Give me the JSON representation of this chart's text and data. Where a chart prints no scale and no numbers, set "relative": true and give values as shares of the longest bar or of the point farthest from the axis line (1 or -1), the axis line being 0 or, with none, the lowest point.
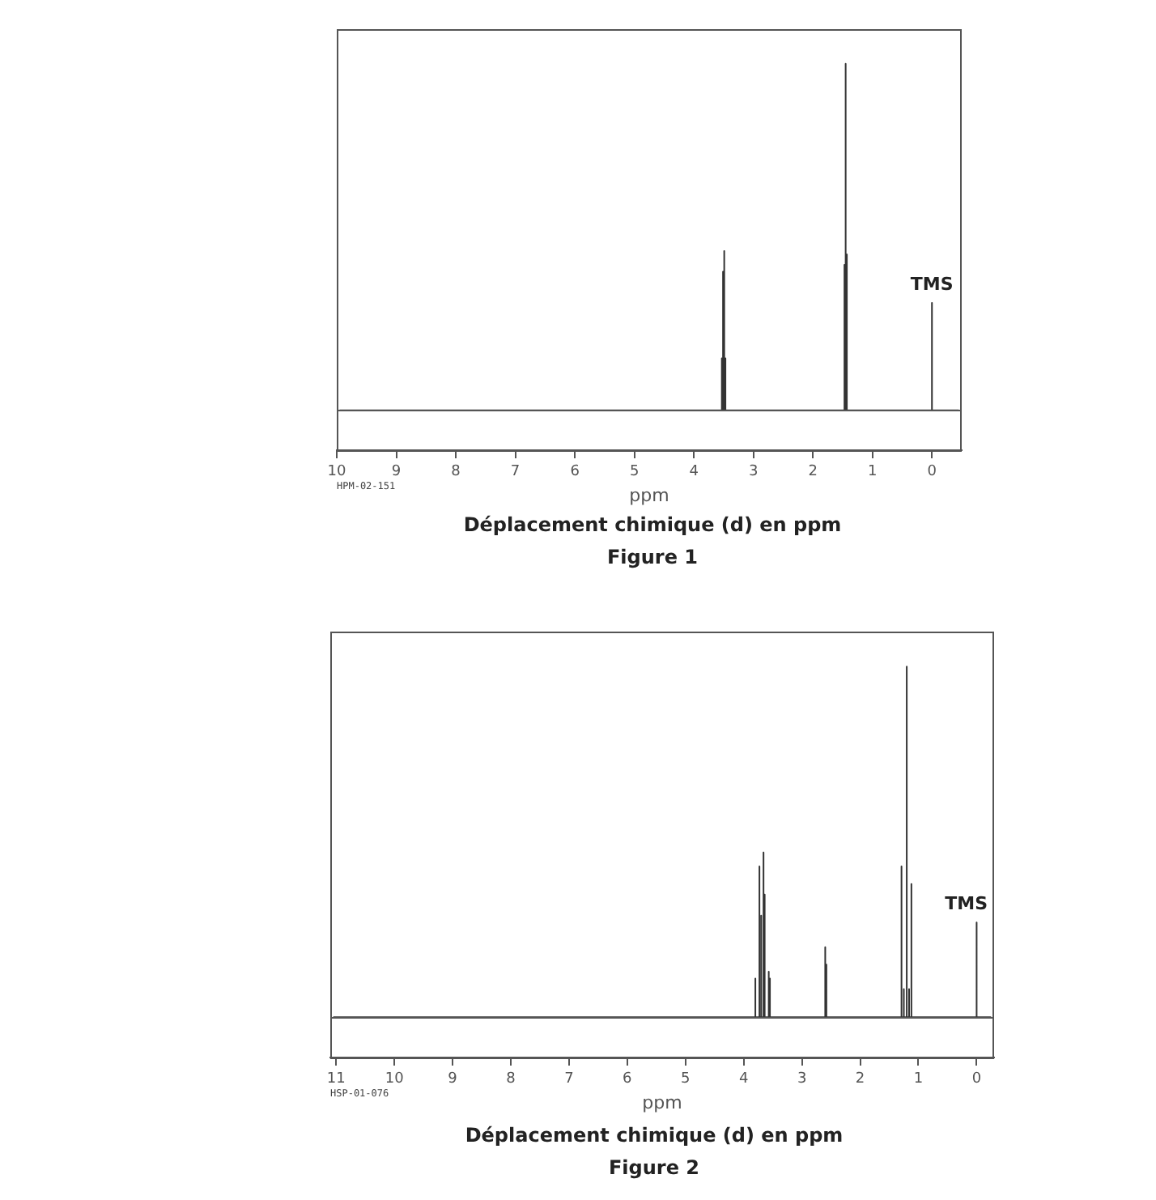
{
  "chart_data": [
    {
      "type": "line",
      "relative": true,
      "marker": "none",
      "xlabel": "ppm",
      "xlim": [
        10,
        -0.5
      ],
      "xticks": [
        10,
        9,
        8,
        7,
        6,
        5,
        4,
        3,
        2,
        1,
        0
      ],
      "series": [
        {
          "color": "#333333",
          "x": [
            9.95,
            3.53,
            3.53,
            3.53,
            3.51,
            3.51,
            3.51,
            3.49,
            3.49,
            3.49,
            3.47,
            3.47,
            3.47,
            1.47,
            1.47,
            1.47,
            1.45,
            1.45,
            1.45,
            1.43,
            1.43,
            1.43,
            0,
            0,
            0,
            -0.45
          ],
          "values": [
            0,
            0,
            0.15,
            0,
            0,
            0.4,
            0,
            0,
            0.46,
            0,
            0,
            0.15,
            0,
            0,
            0.42,
            0,
            0,
            1,
            0,
            0,
            0.45,
            0,
            0,
            0.31,
            0,
            0
          ]
        }
      ],
      "annotations": [
        {
          "text": "TMS",
          "x": 0,
          "y": 0.31
        },
        "HPM-02-151",
        "Déplacement chimique (d) en ppm",
        "Figure 1"
      ]
    },
    {
      "type": "line",
      "relative": true,
      "marker": "none",
      "xlabel": "ppm",
      "xlim": [
        11.1,
        -0.3
      ],
      "xticks": [
        11,
        10,
        9,
        8,
        7,
        6,
        5,
        4,
        3,
        2,
        1,
        0
      ],
      "series": [
        {
          "color": "#333333",
          "x": [
            11.05,
            3.8,
            3.8,
            3.8,
            3.73,
            3.73,
            3.73,
            3.7,
            3.7,
            3.7,
            3.66,
            3.66,
            3.66,
            3.64,
            3.64,
            3.64,
            3.57,
            3.57,
            3.57,
            3.55,
            3.55,
            3.55,
            2.6,
            2.6,
            2.6,
            2.58,
            2.58,
            2.58,
            1.29,
            1.29,
            1.29,
            1.25,
            1.25,
            1.25,
            1.2,
            1.2,
            1.2,
            1.16,
            1.16,
            1.16,
            1.12,
            1.12,
            1.12,
            0,
            0,
            0,
            -0.25
          ],
          "values": [
            0,
            0,
            0.11,
            0,
            0,
            0.43,
            0,
            0,
            0.29,
            0,
            0,
            0.47,
            0,
            0,
            0.35,
            0,
            0,
            0.13,
            0,
            0,
            0.11,
            0,
            0,
            0.2,
            0,
            0,
            0.15,
            0,
            0,
            0.43,
            0,
            0,
            0.08,
            0,
            0,
            1,
            0,
            0,
            0.08,
            0,
            0,
            0.38,
            0,
            0,
            0.27,
            0,
            0
          ]
        }
      ],
      "annotations": [
        {
          "text": "TMS",
          "x": 0,
          "y": 0.27
        },
        "HSP-01-076",
        "Déplacement chimique (d) en ppm",
        "Figure 2"
      ]
    }
  ]
}
